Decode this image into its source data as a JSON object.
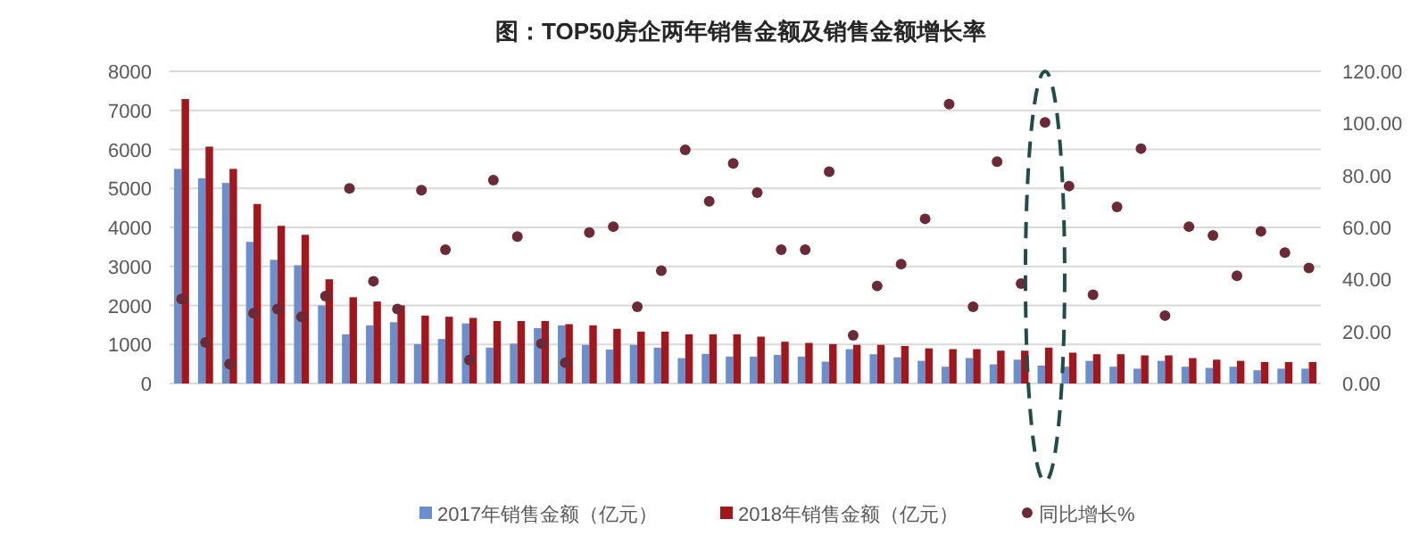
{
  "chart_data": {
    "type": "bar",
    "title": "图：TOP50房企两年销售金额及销售金额增长率",
    "categories": [
      null,
      null,
      null,
      null,
      null,
      null,
      null,
      null,
      null,
      null,
      null,
      null,
      null,
      null,
      null,
      null,
      null,
      null,
      null,
      null,
      null,
      null,
      null,
      null,
      null,
      null,
      null,
      null,
      null,
      null,
      null,
      null,
      null,
      null,
      null,
      null,
      null,
      null,
      null,
      null,
      null,
      null,
      null,
      null,
      null,
      null,
      null,
      null
    ],
    "series": [
      {
        "name": "2017年销售金额（亿元）",
        "color": "#6a8fcf",
        "values": [
          5500,
          5260,
          5140,
          3630,
          3170,
          3030,
          2000,
          1260,
          1490,
          1570,
          1010,
          1140,
          1540,
          920,
          1020,
          1420,
          1490,
          990,
          870,
          990,
          920,
          650,
          760,
          690,
          690,
          730,
          690,
          560,
          880,
          750,
          670,
          580,
          430,
          650,
          490,
          610,
          460,
          430,
          580,
          430,
          380,
          580,
          430,
          400,
          430,
          340,
          380,
          380
        ]
      },
      {
        "name": "2018年销售金额（亿元）",
        "color": "#a3161b",
        "values": [
          7290,
          6070,
          5500,
          4600,
          4040,
          3810,
          2670,
          2210,
          2100,
          2000,
          1740,
          1710,
          1680,
          1600,
          1600,
          1600,
          1520,
          1490,
          1400,
          1330,
          1330,
          1260,
          1260,
          1260,
          1200,
          1070,
          1040,
          1010,
          990,
          990,
          960,
          900,
          880,
          880,
          840,
          840,
          920,
          790,
          750,
          750,
          720,
          720,
          650,
          610,
          580,
          550,
          550,
          550
        ]
      },
      {
        "name": "同比增长%",
        "type": "scatter",
        "axis": "y2",
        "color": "#6b2a35",
        "values": [
          32.5,
          15.8,
          7.5,
          27,
          28.6,
          25.6,
          33.6,
          75,
          39.3,
          28.6,
          74.3,
          51.4,
          9,
          78.2,
          56.5,
          15.3,
          8,
          58,
          60.3,
          29.5,
          43.4,
          89.8,
          70,
          84.6,
          73.4,
          51.4,
          51.4,
          81.4,
          18.5,
          37.5,
          45.9,
          63.3,
          107.4,
          29.5,
          85.3,
          38.4,
          100.4,
          75.9,
          34.1,
          67.9,
          90.3,
          26.1,
          60.3,
          56.9,
          41.4,
          58.5,
          50.3,
          44.4
        ]
      }
    ],
    "marker": "circle",
    "ylim": [
      0,
      8000
    ],
    "yticks": [
      0,
      1000,
      2000,
      3000,
      4000,
      5000,
      6000,
      7000,
      8000
    ],
    "y2lim": [
      0,
      120
    ],
    "y2ticks": [
      {
        "value": 0,
        "label": "0.00"
      },
      {
        "value": 20,
        "label": "20.00"
      },
      {
        "value": 40,
        "label": "40.00"
      },
      {
        "value": 60,
        "label": "60.00"
      },
      {
        "value": 80,
        "label": "80.00"
      },
      {
        "value": 100,
        "label": "100.00"
      },
      {
        "value": 120,
        "label": "120.00"
      }
    ],
    "grid": "y",
    "legend": "bottom"
  }
}
